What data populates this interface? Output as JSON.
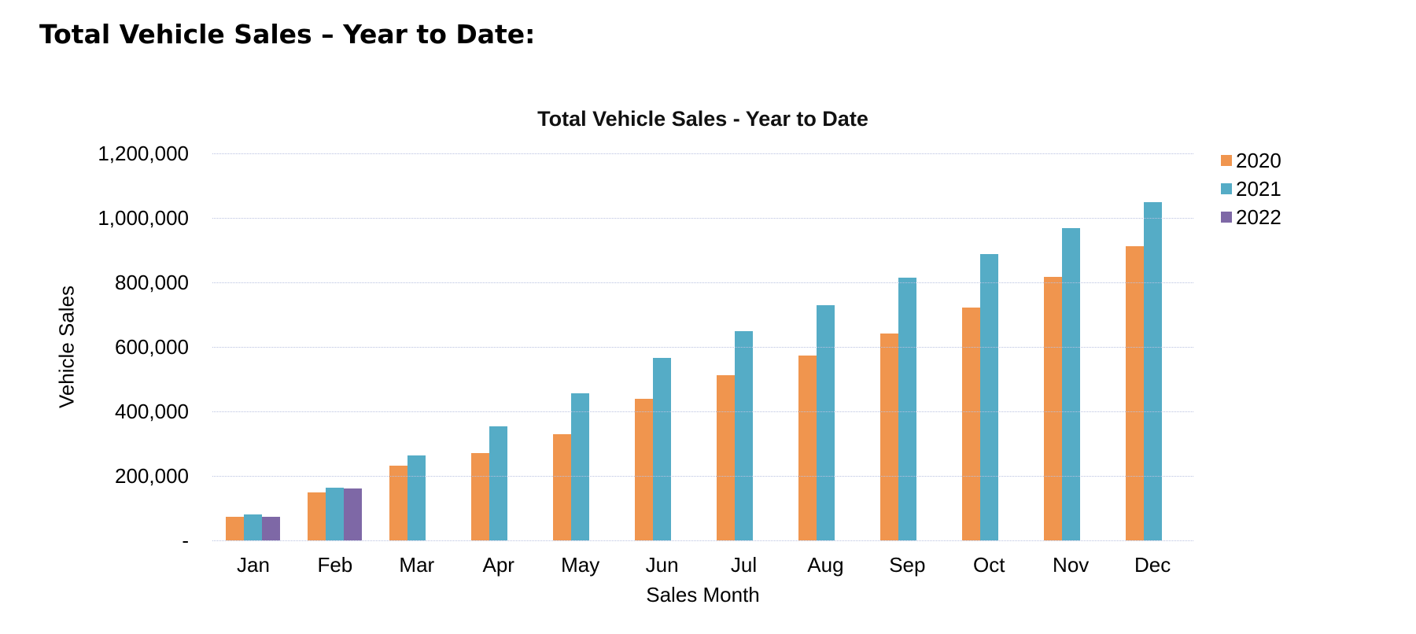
{
  "page": {
    "heading": "Total Vehicle Sales – Year to Date:"
  },
  "chart_data": {
    "type": "bar",
    "title": "Total Vehicle Sales - Year to Date",
    "xlabel": "Sales Month",
    "ylabel": "Vehicle Sales",
    "categories": [
      "Jan",
      "Feb",
      "Mar",
      "Apr",
      "May",
      "Jun",
      "Jul",
      "Aug",
      "Sep",
      "Oct",
      "Nov",
      "Dec"
    ],
    "series": [
      {
        "name": "2020",
        "color": "#F0954E",
        "values": [
          72000,
          150000,
          232000,
          270000,
          330000,
          440000,
          512000,
          573000,
          642000,
          723000,
          818000,
          913000
        ]
      },
      {
        "name": "2021",
        "color": "#55ACC6",
        "values": [
          80000,
          163000,
          263000,
          354000,
          455000,
          565000,
          650000,
          730000,
          814000,
          887000,
          968000,
          1048000
        ]
      },
      {
        "name": "2022",
        "color": "#7E68A6",
        "values": [
          74000,
          160000,
          null,
          null,
          null,
          null,
          null,
          null,
          null,
          null,
          null,
          null
        ]
      }
    ],
    "ylim": [
      0,
      1200000
    ],
    "y_ticks": [
      {
        "value": 1200000,
        "label": "1,200,000"
      },
      {
        "value": 1000000,
        "label": "1,000,000"
      },
      {
        "value": 800000,
        "label": "800,000"
      },
      {
        "value": 600000,
        "label": "600,000"
      },
      {
        "value": 400000,
        "label": "400,000"
      },
      {
        "value": 200000,
        "label": "200,000"
      },
      {
        "value": 0,
        "label": "-"
      }
    ],
    "grid": "horizontal-dotted",
    "legend_position": "right",
    "gridline_color": "#b9c1e0"
  }
}
